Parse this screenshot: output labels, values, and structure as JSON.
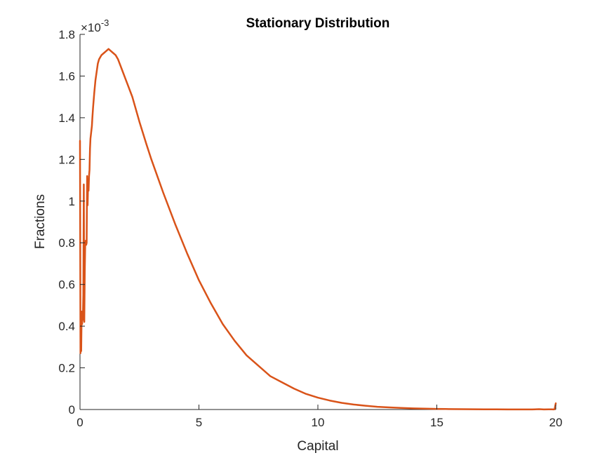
{
  "chart_data": {
    "type": "line",
    "title": "Stationary Distribution",
    "xlabel": "Capital",
    "ylabel": "Fractions",
    "xlim": [
      0,
      20
    ],
    "ylim": [
      0,
      0.0018
    ],
    "y_exponent_label": "×10",
    "y_exponent_power": "-3",
    "xticks": [
      0,
      5,
      10,
      15,
      20
    ],
    "xtick_labels": [
      "0",
      "5",
      "10",
      "15",
      "20"
    ],
    "yticks": [
      0,
      0.0002,
      0.0004,
      0.0006,
      0.0008,
      0.001,
      0.0012,
      0.0014,
      0.0016,
      0.0018
    ],
    "ytick_labels": [
      "0",
      "0.2",
      "0.4",
      "0.6",
      "0.8",
      "1",
      "1.2",
      "1.4",
      "1.6",
      "1.8"
    ],
    "grid": false,
    "series": [
      {
        "color": "#D95319",
        "x": [
          0.0,
          0.02,
          0.04,
          0.05,
          0.07,
          0.09,
          0.1,
          0.12,
          0.14,
          0.16,
          0.18,
          0.2,
          0.22,
          0.24,
          0.26,
          0.28,
          0.3,
          0.32,
          0.34,
          0.36,
          0.38,
          0.4,
          0.42,
          0.44,
          0.47,
          0.5,
          0.52,
          0.55,
          0.6,
          0.65,
          0.7,
          0.75,
          0.8,
          0.9,
          1.0,
          1.1,
          1.2,
          1.3,
          1.4,
          1.5,
          1.6,
          1.7,
          1.8,
          1.9,
          2.0,
          2.1,
          2.2,
          2.3,
          2.5,
          2.8,
          3.0,
          3.5,
          4.0,
          4.5,
          5.0,
          5.5,
          6.0,
          6.5,
          7.0,
          7.5,
          8.0,
          8.5,
          9.0,
          9.5,
          10.0,
          10.5,
          11.0,
          11.5,
          12.0,
          12.5,
          13.0,
          13.5,
          14.0,
          14.5,
          15.0,
          15.5,
          16.0,
          16.5,
          17.0,
          17.5,
          18.0,
          18.5,
          19.0,
          19.3,
          19.5,
          19.7,
          19.85,
          19.9,
          19.95,
          20.0
        ],
        "y": [
          0.00129,
          0.00027,
          0.00042,
          0.00028,
          0.00047,
          0.00041,
          0.00046,
          0.00043,
          0.00055,
          0.00108,
          0.00042,
          0.00066,
          0.0008,
          0.00081,
          0.00079,
          0.0008,
          0.00112,
          0.00098,
          0.00108,
          0.00105,
          0.00112,
          0.00115,
          0.00125,
          0.0013,
          0.00133,
          0.00136,
          0.0014,
          0.00145,
          0.00152,
          0.00158,
          0.00162,
          0.00166,
          0.00168,
          0.0017,
          0.00171,
          0.00172,
          0.00173,
          0.00172,
          0.00171,
          0.0017,
          0.00168,
          0.00165,
          0.00162,
          0.00159,
          0.00156,
          0.00153,
          0.0015,
          0.00146,
          0.00138,
          0.00127,
          0.0012,
          0.00104,
          0.00089,
          0.00075,
          0.00062,
          0.00051,
          0.00041,
          0.00033,
          0.00026,
          0.00021,
          0.00016,
          0.00013,
          0.0001,
          7.5e-05,
          5.7e-05,
          4.3e-05,
          3.2e-05,
          2.4e-05,
          1.8e-05,
          1.3e-05,
          1e-05,
          7.5e-06,
          5.5e-06,
          4e-06,
          3e-06,
          2.2e-06,
          1.6e-06,
          1.2e-06,
          9e-07,
          7e-07,
          5e-07,
          4e-07,
          3e-07,
          1.5e-06,
          5e-07,
          1e-06,
          8e-07,
          5e-07,
          1.2e-06,
          3e-05
        ]
      }
    ]
  }
}
